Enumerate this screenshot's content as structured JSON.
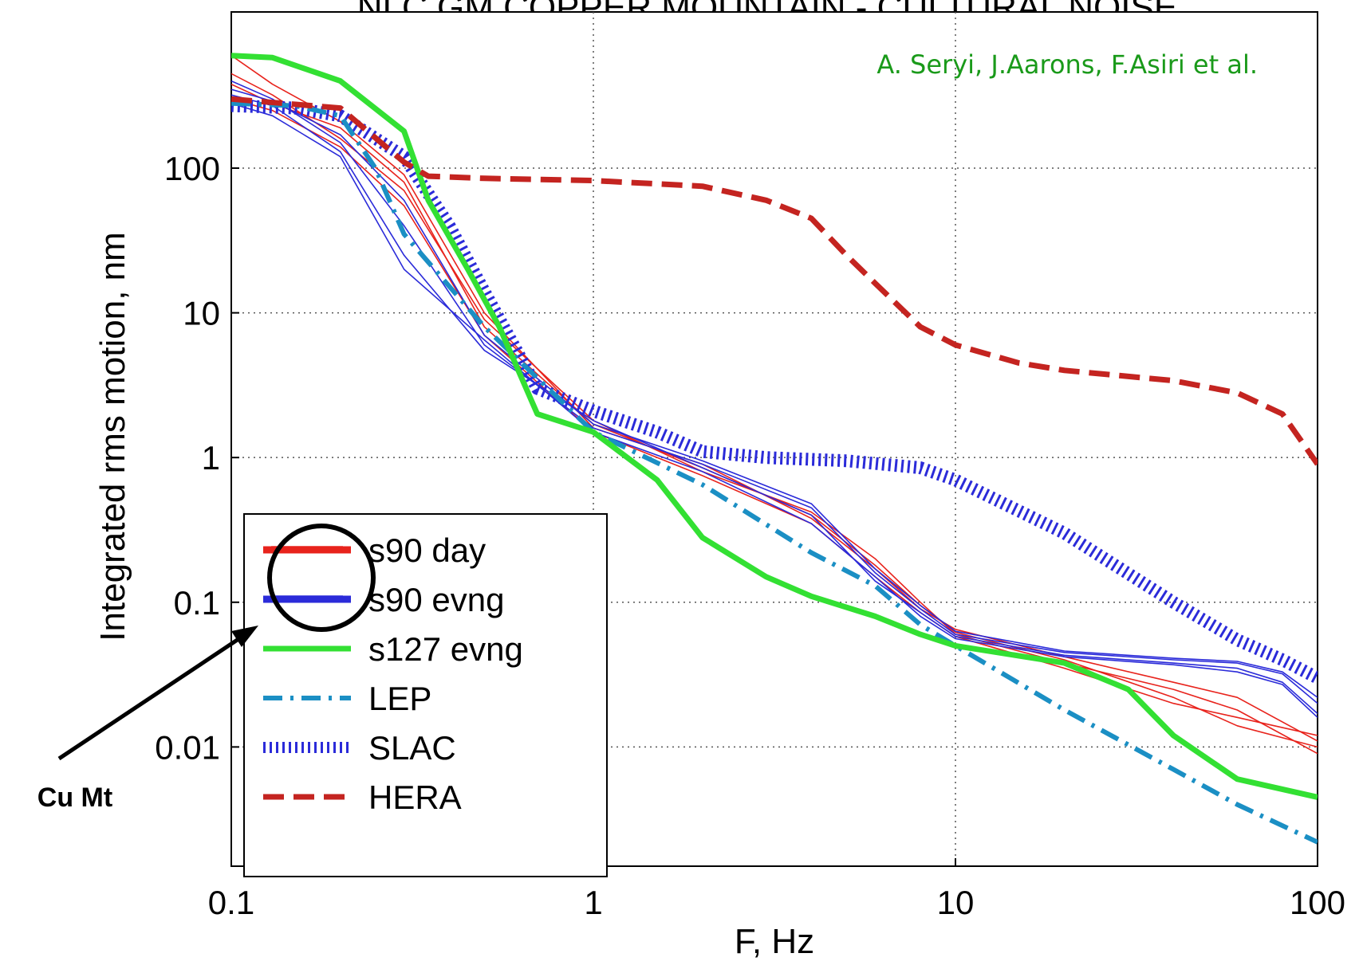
{
  "chart_data": {
    "type": "line",
    "title": "NLC GM COPPER MOUNTAIN - CULTURAL NOISE",
    "credit": "A. Seryi, J.Aarons, F.Asiri et al.",
    "xlabel": "F, Hz",
    "ylabel": "Integrated rms motion, nm",
    "x_scale": "log",
    "y_scale": "log",
    "xlim": [
      0.1,
      100
    ],
    "ylim": [
      0.0015,
      1200
    ],
    "x_ticks": [
      {
        "value": 0.1,
        "label": "0.1"
      },
      {
        "value": 1,
        "label": "1"
      },
      {
        "value": 10,
        "label": "10"
      },
      {
        "value": 100,
        "label": "100"
      }
    ],
    "y_ticks": [
      {
        "value": 100,
        "label": "100"
      },
      {
        "value": 10,
        "label": "10"
      },
      {
        "value": 1,
        "label": "1"
      },
      {
        "value": 0.1,
        "label": "0.1"
      },
      {
        "value": 0.01,
        "label": "0.01"
      }
    ],
    "grid": true,
    "legend_position": "bottom-left",
    "annotation": "Cu Mt",
    "series": [
      {
        "name": "s90 day",
        "color": "#e8231c",
        "style": "thin-multi",
        "curves": [
          {
            "x": [
              0.1,
              0.13,
              0.2,
              0.3,
              0.5,
              1,
              2,
              4,
              6,
              8,
              10,
              20,
              40,
              60,
              100
            ],
            "y": [
              600,
              380,
              210,
              90,
              10,
              1.6,
              0.9,
              0.38,
              0.17,
              0.09,
              0.065,
              0.042,
              0.028,
              0.022,
              0.011
            ]
          },
          {
            "x": [
              0.1,
              0.13,
              0.2,
              0.3,
              0.5,
              1,
              2,
              4,
              6,
              8,
              10,
              20,
              40,
              60,
              100
            ],
            "y": [
              450,
              320,
              160,
              70,
              9,
              1.8,
              0.8,
              0.42,
              0.2,
              0.1,
              0.06,
              0.038,
              0.025,
              0.018,
              0.009
            ]
          },
          {
            "x": [
              0.1,
              0.13,
              0.2,
              0.3,
              0.5,
              1,
              2,
              4,
              6,
              8,
              10,
              20,
              40,
              60,
              100
            ],
            "y": [
              300,
              250,
              140,
              55,
              7,
              1.5,
              0.75,
              0.35,
              0.15,
              0.085,
              0.058,
              0.035,
              0.02,
              0.016,
              0.012
            ]
          },
          {
            "x": [
              0.1,
              0.13,
              0.2,
              0.3,
              0.5,
              1,
              2,
              4,
              6,
              8,
              10,
              20,
              40,
              60,
              100
            ],
            "y": [
              380,
              280,
              190,
              80,
              8,
              1.7,
              0.85,
              0.4,
              0.18,
              0.095,
              0.062,
              0.04,
              0.022,
              0.014,
              0.01
            ]
          }
        ]
      },
      {
        "name": "s90 evng",
        "color": "#2b2bd9",
        "style": "thin-multi",
        "curves": [
          {
            "x": [
              0.1,
              0.13,
              0.2,
              0.3,
              0.5,
              1,
              2,
              4,
              6,
              8,
              10,
              20,
              40,
              60,
              80,
              100
            ],
            "y": [
              400,
              300,
              150,
              40,
              6,
              1.6,
              0.9,
              0.45,
              0.16,
              0.09,
              0.06,
              0.045,
              0.04,
              0.038,
              0.032,
              0.02
            ]
          },
          {
            "x": [
              0.1,
              0.13,
              0.2,
              0.3,
              0.5,
              1,
              2,
              4,
              6,
              8,
              10,
              20,
              40,
              60,
              80,
              100
            ],
            "y": [
              320,
              270,
              130,
              25,
              5.5,
              1.8,
              0.85,
              0.4,
              0.14,
              0.085,
              0.058,
              0.043,
              0.038,
              0.035,
              0.028,
              0.017
            ]
          },
          {
            "x": [
              0.1,
              0.13,
              0.2,
              0.3,
              0.5,
              1,
              2,
              4,
              6,
              8,
              10,
              20,
              40,
              60,
              80,
              100
            ],
            "y": [
              280,
              230,
              120,
              20,
              6.5,
              1.5,
              0.8,
              0.35,
              0.15,
              0.08,
              0.056,
              0.042,
              0.037,
              0.033,
              0.027,
              0.016
            ]
          },
          {
            "x": [
              0.1,
              0.13,
              0.2,
              0.3,
              0.5,
              1,
              2,
              4,
              6,
              8,
              10,
              20,
              40,
              60,
              80,
              100
            ],
            "y": [
              350,
              290,
              170,
              60,
              7,
              1.7,
              0.95,
              0.48,
              0.17,
              0.095,
              0.063,
              0.046,
              0.041,
              0.039,
              0.033,
              0.022
            ]
          }
        ]
      },
      {
        "name": "s127 evng",
        "color": "#33e033",
        "style": "thick",
        "curves": [
          {
            "x": [
              0.1,
              0.13,
              0.2,
              0.3,
              0.35,
              0.45,
              0.55,
              0.7,
              1,
              1.5,
              2,
              3,
              4,
              6,
              8,
              10,
              20,
              30,
              40,
              60,
              100
            ],
            "y": [
              600,
              580,
              400,
              180,
              60,
              20,
              8,
              2,
              1.5,
              0.7,
              0.28,
              0.15,
              0.11,
              0.08,
              0.06,
              0.05,
              0.038,
              0.025,
              0.012,
              0.006,
              0.0045
            ]
          }
        ]
      },
      {
        "name": "LEP",
        "color": "#1b8fc4",
        "style": "dashdot",
        "curves": [
          {
            "x": [
              0.1,
              0.15,
              0.2,
              0.25,
              0.3,
              0.5,
              1,
              2,
              4,
              6,
              8,
              10,
              20,
              40,
              60,
              100
            ],
            "y": [
              280,
              270,
              230,
              100,
              35,
              8,
              1.5,
              0.65,
              0.22,
              0.13,
              0.07,
              0.05,
              0.018,
              0.007,
              0.004,
              0.0022
            ]
          }
        ]
      },
      {
        "name": "SLAC",
        "color": "#2b2bd9",
        "style": "hatched",
        "curves": [
          {
            "x": [
              0.1,
              0.15,
              0.2,
              0.3,
              0.4,
              0.5,
              0.7,
              1,
              1.5,
              2,
              3,
              5,
              8,
              10,
              20,
              40,
              60,
              80,
              100
            ],
            "y": [
              270,
              260,
              230,
              120,
              40,
              14,
              3,
              2.1,
              1.5,
              1.1,
              1.0,
              0.95,
              0.85,
              0.7,
              0.3,
              0.1,
              0.055,
              0.04,
              0.03
            ]
          }
        ]
      },
      {
        "name": "HERA",
        "color": "#c42420",
        "style": "dashed",
        "curves": [
          {
            "x": [
              0.1,
              0.2,
              0.3,
              0.35,
              0.5,
              1,
              2,
              3,
              4,
              5,
              6,
              8,
              10,
              15,
              20,
              40,
              60,
              80,
              100
            ],
            "y": [
              300,
              260,
              110,
              88,
              85,
              82,
              75,
              60,
              45,
              25,
              16,
              8,
              6,
              4.5,
              4,
              3.4,
              2.8,
              2,
              0.9
            ]
          }
        ]
      }
    ]
  }
}
